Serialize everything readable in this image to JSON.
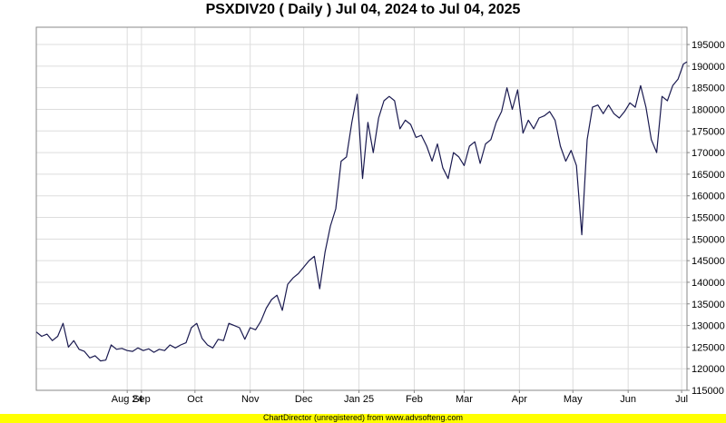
{
  "chart_data": {
    "type": "line",
    "title": "PSXDIV20 ( Daily ) Jul 04, 2024 to Jul 04, 2025",
    "xlabel": "",
    "ylabel": "",
    "x_range": [
      "2024-07-04",
      "2025-07-04"
    ],
    "ylim": [
      115000,
      199000
    ],
    "y_ticks": [
      115000,
      120000,
      125000,
      130000,
      135000,
      140000,
      145000,
      150000,
      155000,
      160000,
      165000,
      170000,
      175000,
      180000,
      185000,
      190000,
      195000
    ],
    "y_axis_position": "right",
    "grid": true,
    "x_ticks": [
      {
        "label": "Aug 24",
        "date": "2024-08-24"
      },
      {
        "label": "Sep",
        "date": "2024-09-01"
      },
      {
        "label": "Oct",
        "date": "2024-10-01"
      },
      {
        "label": "Nov",
        "date": "2024-11-01"
      },
      {
        "label": "Dec",
        "date": "2024-12-01"
      },
      {
        "label": "Jan 25",
        "date": "2025-01-01"
      },
      {
        "label": "Feb",
        "date": "2025-02-01"
      },
      {
        "label": "Mar",
        "date": "2025-03-01"
      },
      {
        "label": "Apr",
        "date": "2025-04-01"
      },
      {
        "label": "May",
        "date": "2025-05-01"
      },
      {
        "label": "Jun",
        "date": "2025-06-01"
      },
      {
        "label": "Jul",
        "date": "2025-07-01"
      }
    ],
    "line_color": "#1a1a50",
    "series": [
      {
        "x": [
          "2024-07-04",
          "2024-07-07",
          "2024-07-10",
          "2024-07-13",
          "2024-07-16",
          "2024-07-19",
          "2024-07-22",
          "2024-07-25",
          "2024-07-28",
          "2024-07-31",
          "2024-08-03",
          "2024-08-06",
          "2024-08-09",
          "2024-08-12",
          "2024-08-15",
          "2024-08-18",
          "2024-08-21",
          "2024-08-24",
          "2024-08-27",
          "2024-08-30",
          "2024-09-02",
          "2024-09-05",
          "2024-09-08",
          "2024-09-11",
          "2024-09-14",
          "2024-09-17",
          "2024-09-20",
          "2024-09-23",
          "2024-09-26",
          "2024-09-29",
          "2024-10-02",
          "2024-10-05",
          "2024-10-08",
          "2024-10-11",
          "2024-10-14",
          "2024-10-17",
          "2024-10-20",
          "2024-10-23",
          "2024-10-26",
          "2024-10-29",
          "2024-11-01",
          "2024-11-04",
          "2024-11-07",
          "2024-11-10",
          "2024-11-13",
          "2024-11-16",
          "2024-11-19",
          "2024-11-22",
          "2024-11-25",
          "2024-11-28",
          "2024-12-01",
          "2024-12-04",
          "2024-12-07",
          "2024-12-10",
          "2024-12-13",
          "2024-12-16",
          "2024-12-19",
          "2024-12-22",
          "2024-12-25",
          "2024-12-28",
          "2024-12-31",
          "2025-01-03",
          "2025-01-06",
          "2025-01-09",
          "2025-01-12",
          "2025-01-15",
          "2025-01-18",
          "2025-01-21",
          "2025-01-24",
          "2025-01-27",
          "2025-01-30",
          "2025-02-02",
          "2025-02-05",
          "2025-02-08",
          "2025-02-11",
          "2025-02-14",
          "2025-02-17",
          "2025-02-20",
          "2025-02-23",
          "2025-02-26",
          "2025-03-01",
          "2025-03-04",
          "2025-03-07",
          "2025-03-10",
          "2025-03-13",
          "2025-03-16",
          "2025-03-19",
          "2025-03-22",
          "2025-03-25",
          "2025-03-28",
          "2025-03-31",
          "2025-04-03",
          "2025-04-06",
          "2025-04-09",
          "2025-04-12",
          "2025-04-15",
          "2025-04-18",
          "2025-04-21",
          "2025-04-24",
          "2025-04-27",
          "2025-04-30",
          "2025-05-03",
          "2025-05-06",
          "2025-05-09",
          "2025-05-12",
          "2025-05-15",
          "2025-05-18",
          "2025-05-21",
          "2025-05-24",
          "2025-05-27",
          "2025-05-30",
          "2025-06-02",
          "2025-06-05",
          "2025-06-08",
          "2025-06-11",
          "2025-06-14",
          "2025-06-17",
          "2025-06-20",
          "2025-06-23",
          "2025-06-26",
          "2025-06-29",
          "2025-07-02",
          "2025-07-04"
        ],
        "y": [
          128500,
          127500,
          128000,
          126500,
          127500,
          130500,
          125000,
          126500,
          124500,
          124000,
          122500,
          123000,
          121800,
          122000,
          125500,
          124500,
          124700,
          124200,
          124000,
          124800,
          124200,
          124600,
          123800,
          124500,
          124200,
          125500,
          124800,
          125500,
          126000,
          129500,
          130500,
          127000,
          125500,
          124800,
          126800,
          126500,
          130500,
          130000,
          129500,
          126800,
          129500,
          129000,
          131000,
          134000,
          136000,
          137000,
          133500,
          139500,
          141000,
          142000,
          143500,
          145000,
          146000,
          138500,
          147000,
          153000,
          157000,
          168000,
          169000,
          177000,
          183500,
          164000,
          177000,
          170000,
          178000,
          182000,
          183000,
          182000,
          175500,
          177500,
          176500,
          173500,
          174000,
          171500,
          168000,
          172000,
          166500,
          164000,
          170000,
          169000,
          167000,
          171500,
          172500,
          167500,
          172000,
          173000,
          177000,
          179500,
          185000,
          180000,
          184500,
          174500,
          177500,
          175500,
          178000,
          178500,
          179500,
          177500,
          171500,
          168000,
          170500,
          167000,
          151000,
          173000,
          180500,
          181000,
          179000,
          181000,
          179000,
          178000,
          179500,
          181500,
          180500,
          185500,
          180500,
          173000,
          170000,
          183000,
          182000,
          185500,
          187000,
          190500,
          191000
        ]
      }
    ],
    "footer": "ChartDirector (unregistered) from www.advsofteng.com"
  }
}
